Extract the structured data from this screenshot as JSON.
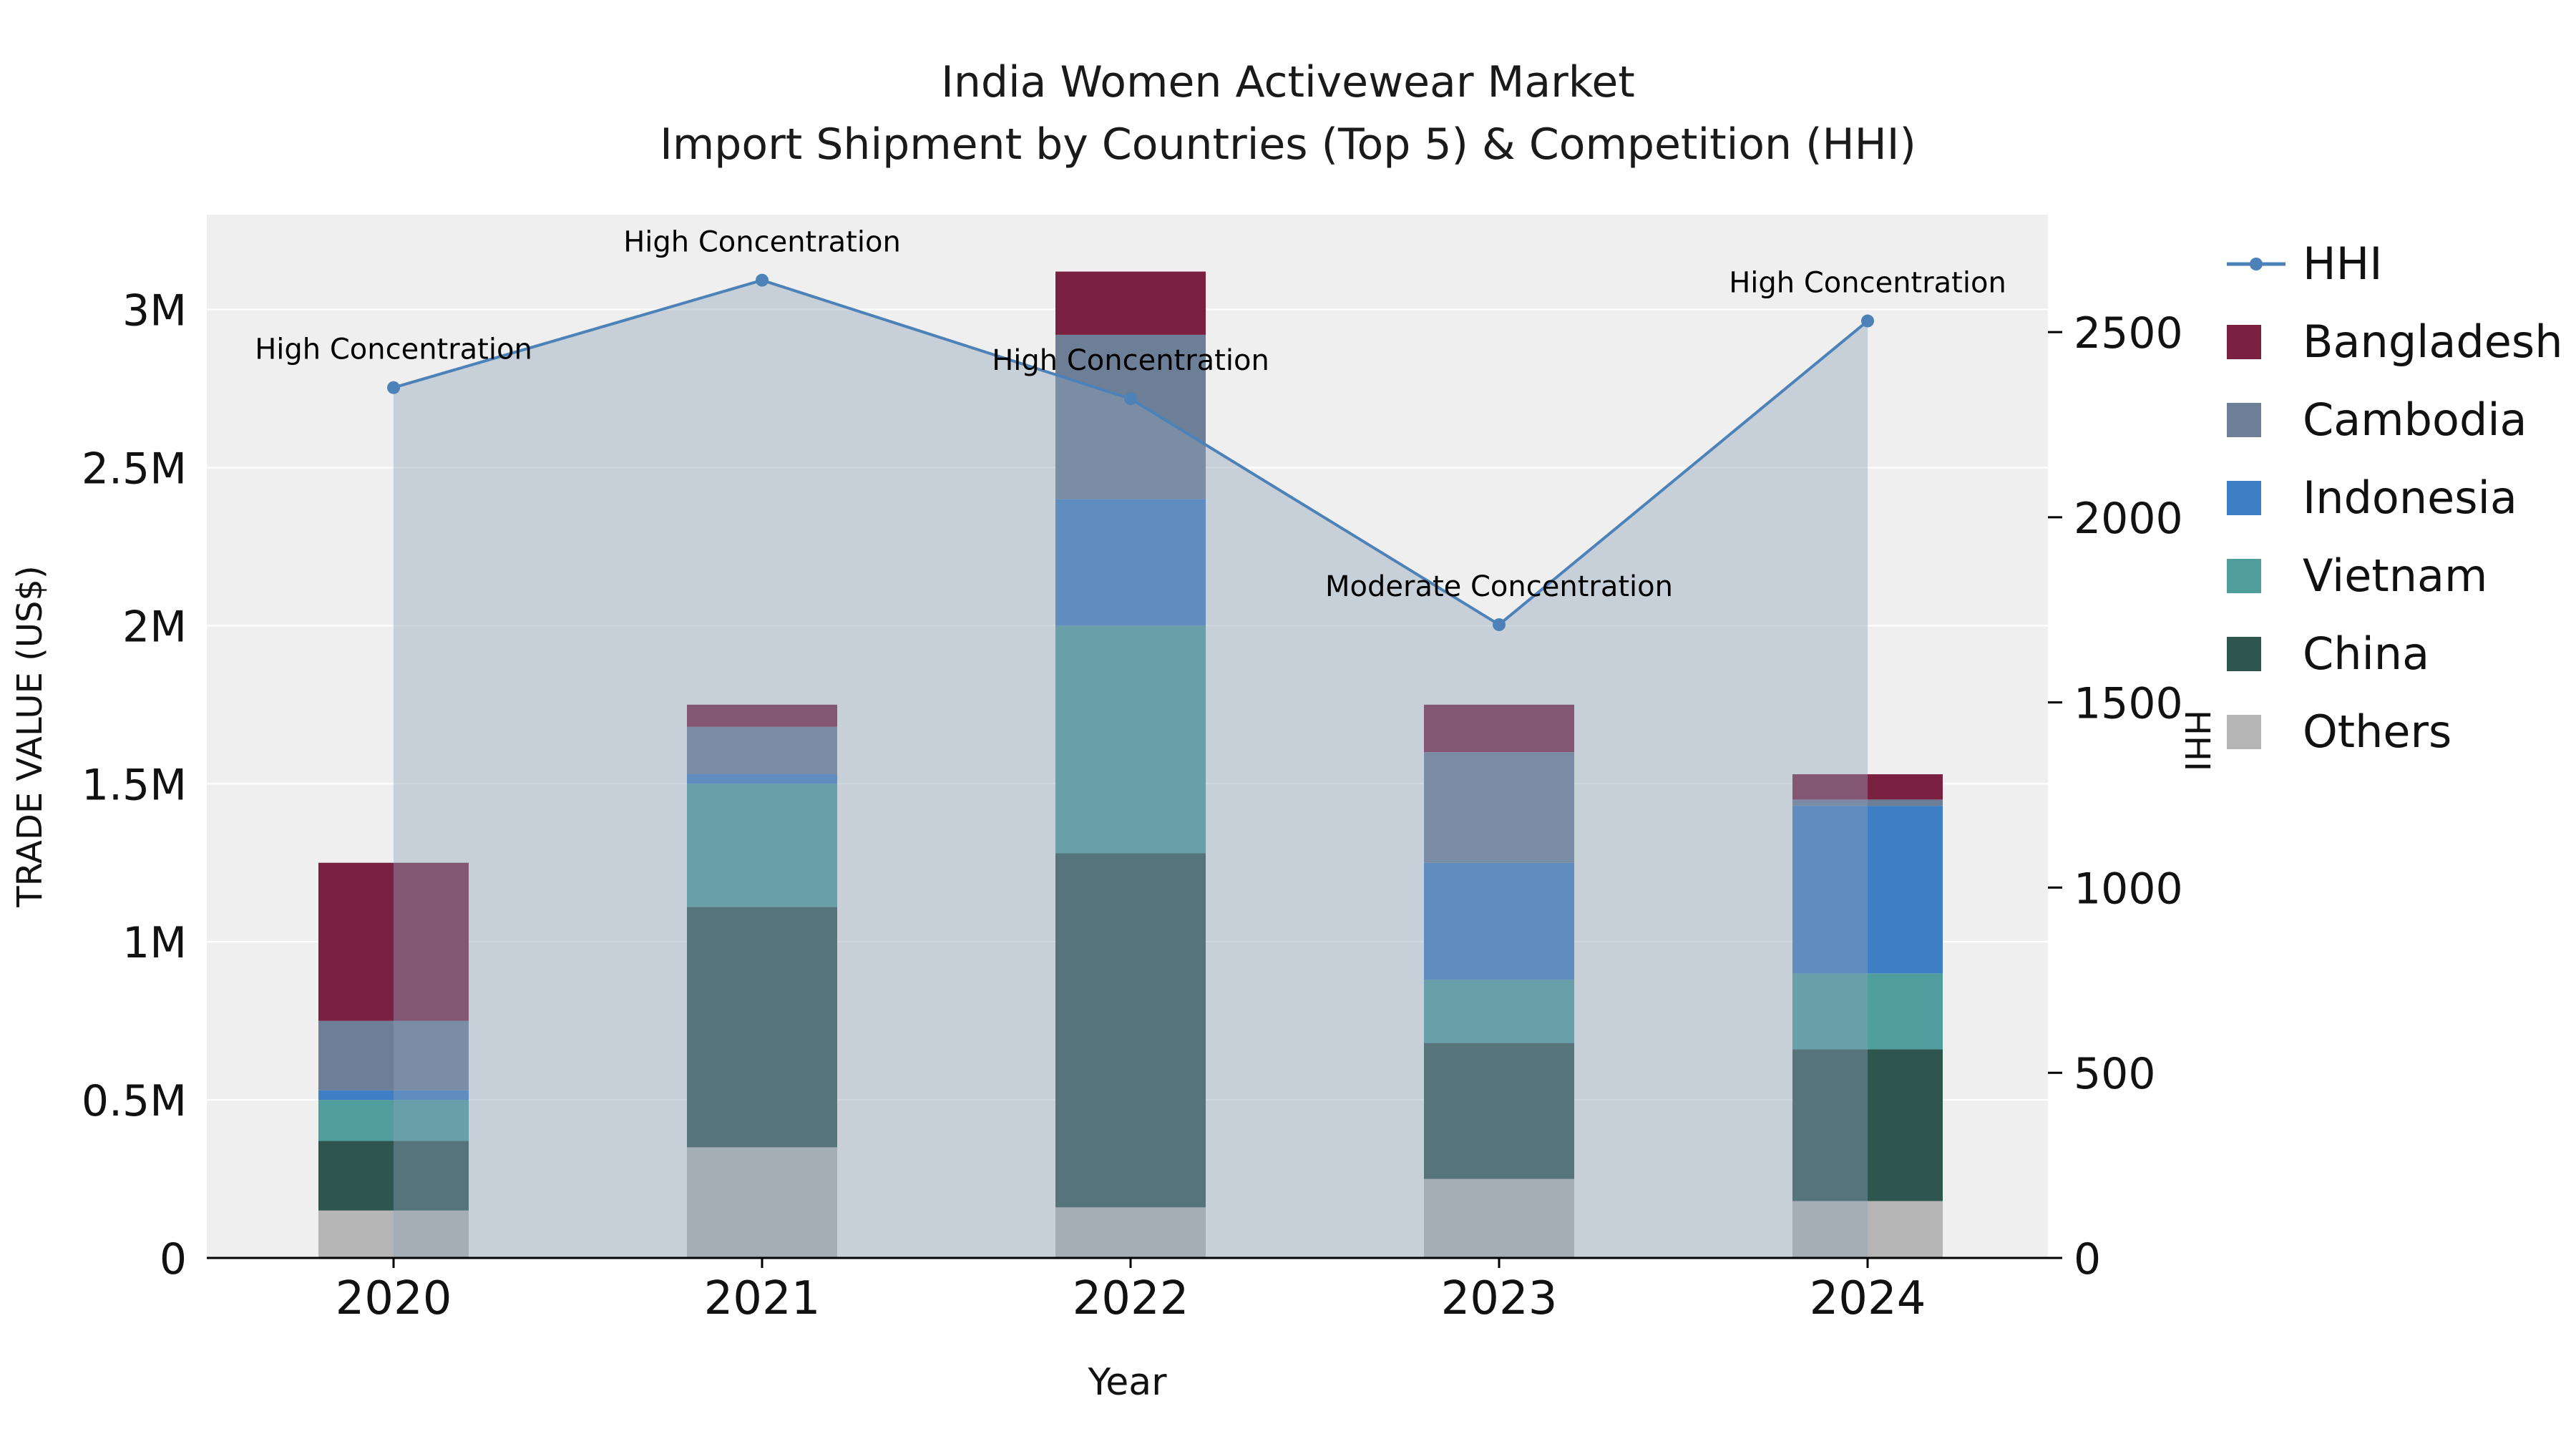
{
  "chart_data": {
    "type": "combo-stacked-bar-line",
    "title_line1": "India Women Activewear Market",
    "title_line2": "Import Shipment by Countries (Top 5) & Competition (HHI)",
    "xlabel": "Year",
    "ylabel_left": "TRADE VALUE (US$)",
    "ylabel_right": "HHI",
    "categories": [
      "2020",
      "2021",
      "2022",
      "2023",
      "2024"
    ],
    "bar_value_unit": "millions of US$",
    "bar_series": [
      {
        "name": "Others",
        "color": "#b5b5b5",
        "values": [
          0.15,
          0.35,
          0.16,
          0.25,
          0.18
        ]
      },
      {
        "name": "China",
        "color": "#2e554e",
        "values": [
          0.22,
          0.76,
          1.12,
          0.43,
          0.48
        ]
      },
      {
        "name": "Vietnam",
        "color": "#4f9d9d",
        "values": [
          0.13,
          0.39,
          0.72,
          0.2,
          0.24
        ]
      },
      {
        "name": "Indonesia",
        "color": "#3d7ec4",
        "values": [
          0.03,
          0.03,
          0.4,
          0.37,
          0.53
        ]
      },
      {
        "name": "Cambodia",
        "color": "#6d7e97",
        "values": [
          0.22,
          0.15,
          0.52,
          0.35,
          0.02
        ]
      },
      {
        "name": "Bangladesh",
        "color": "#7a2040",
        "values": [
          0.5,
          0.07,
          0.2,
          0.15,
          0.08
        ]
      }
    ],
    "hhi": {
      "name": "HHI",
      "color": "#4d82b8",
      "values": [
        2350,
        2640,
        2320,
        1710,
        2530
      ],
      "annotations": [
        "High Concentration",
        "High Concentration",
        "High Concentration",
        "Moderate Concentration",
        "High Concentration"
      ]
    },
    "y_left": {
      "ticks": [
        "0",
        "0.5M",
        "1M",
        "1.5M",
        "2M",
        "2.5M",
        "3M"
      ],
      "tick_values": [
        0,
        0.5,
        1,
        1.5,
        2,
        2.5,
        3
      ],
      "max": 3.3
    },
    "y_right": {
      "ticks": [
        "0",
        "500",
        "1000",
        "1500",
        "2000",
        "2500"
      ],
      "tick_values": [
        0,
        500,
        1000,
        1500,
        2000,
        2500
      ],
      "max": 2817
    },
    "colors": {
      "plot_bg": "#efefef",
      "grid": "#ffffff",
      "area_fill": "#8fa3bb",
      "axis": "#000000"
    }
  }
}
